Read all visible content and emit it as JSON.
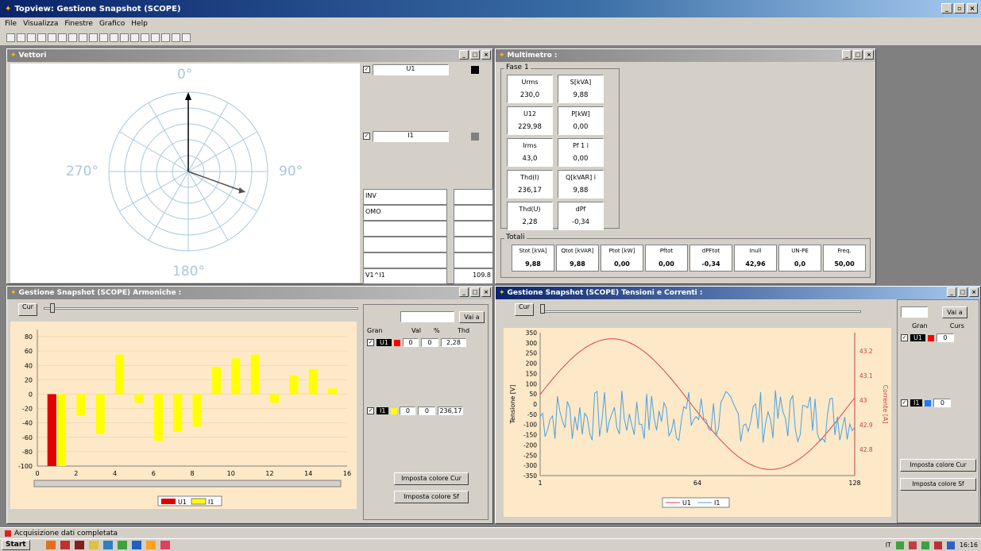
{
  "app": {
    "title": "Topview: Gestione Snapshot (SCOPE)",
    "menu": [
      "File",
      "Visualizza",
      "Finestre",
      "Grafico",
      "Help"
    ]
  },
  "vettori": {
    "title": "Vettori",
    "deg_top": "0°",
    "deg_right": "90°",
    "deg_bottom": "180°",
    "deg_left": "270°",
    "u1_label": "U1",
    "i1_label": "I1",
    "u1_color": "#000000",
    "i1_color": "#808080",
    "table": [
      [
        "INV",
        ""
      ],
      [
        "OMO",
        ""
      ],
      [
        "",
        ""
      ],
      [
        "",
        ""
      ],
      [
        "",
        ""
      ],
      [
        "V1^I1",
        "109.8"
      ]
    ]
  },
  "multimetro": {
    "title": "Multimetro :",
    "fase_label": "Fase 1",
    "cells": [
      {
        "l": "Urms",
        "v": "230,0"
      },
      {
        "l": "S[kVA]",
        "v": "9,88"
      },
      {
        "l": "U12",
        "v": "229,98"
      },
      {
        "l": "P[kW]",
        "v": "0,00"
      },
      {
        "l": "Irms",
        "v": "43,0"
      },
      {
        "l": "Pf 1 i",
        "v": "0,00"
      },
      {
        "l": "Thd(I)",
        "v": "236,17"
      },
      {
        "l": "Q[kVAR] i",
        "v": "9,88"
      },
      {
        "l": "Thd(U)",
        "v": "2,28"
      },
      {
        "l": "dPf",
        "v": "-0,34"
      }
    ],
    "totali_label": "Totali",
    "totali": [
      {
        "l": "Stot [kVA]",
        "v": "9,88"
      },
      {
        "l": "Qtot [kVAR]",
        "v": "9,88"
      },
      {
        "l": "Ptot [kW]",
        "v": "0,00"
      },
      {
        "l": "Pftot",
        "v": "0,00"
      },
      {
        "l": "dPFtot",
        "v": "-0,34"
      },
      {
        "l": "Inull",
        "v": "42,96"
      },
      {
        "l": "UN-PE",
        "v": "0,0"
      },
      {
        "l": "Freq.",
        "v": "50,00"
      }
    ]
  },
  "armoniche": {
    "title": "Gestione Snapshot (SCOPE) Armoniche :",
    "cur_label": "Cur",
    "vai_label": "Vai a",
    "hdr": [
      "Gran",
      "Val",
      "%",
      "Thd"
    ],
    "u1": {
      "name": "U1",
      "val": "0",
      "pct": "0",
      "thd": "2,28",
      "color": "#ff0000"
    },
    "i1": {
      "name": "I1",
      "val": "0",
      "pct": "0",
      "thd": "236,17",
      "color": "#ffff00"
    },
    "btn_cur": "Imposta colore Cur",
    "btn_sf": "Imposta colore Sf"
  },
  "tensioni": {
    "title": "Gestione Snapshot (SCOPE) Tensioni e Correnti :",
    "cur_label": "Cur",
    "vai_label": "Vai a",
    "hdr": [
      "Gran",
      "Curs"
    ],
    "u1": {
      "name": "U1",
      "val": "0",
      "color": "#ff0000"
    },
    "i1": {
      "name": "I1",
      "val": "0",
      "color": "#1e78ff"
    },
    "btn_cur": "Imposta colore Cur",
    "btn_sf": "Imposta colore Sf"
  },
  "chart_data": [
    {
      "type": "bar",
      "categories": [
        1,
        2,
        3,
        4,
        5,
        6,
        7,
        8,
        9,
        10,
        11,
        12,
        13,
        14,
        15
      ],
      "series": [
        {
          "name": "U1",
          "values": [
            -100,
            0,
            0,
            0,
            0,
            0,
            0,
            0,
            0,
            0,
            0,
            0,
            0,
            0,
            0
          ]
        },
        {
          "name": "I1",
          "values": [
            -100,
            -30,
            -55,
            55,
            -12,
            -65,
            -52,
            -45,
            38,
            50,
            55,
            -12,
            26,
            35,
            8
          ]
        }
      ],
      "xticks": [
        0,
        2,
        4,
        6,
        8,
        10,
        12,
        14,
        16
      ],
      "yticks": [
        80,
        60,
        40,
        20,
        0,
        -20,
        -40,
        -60,
        -80,
        -100
      ],
      "ylim": [
        -100,
        90
      ],
      "xlim": [
        0,
        16
      ],
      "legend": "bottom-center"
    },
    {
      "type": "line",
      "ylabel": "Tensione [V]",
      "y2label": "Corrente [A]",
      "yticks": [
        350,
        300,
        250,
        200,
        150,
        100,
        50,
        0,
        -50,
        -100,
        -150,
        -200,
        -250,
        -300,
        -350
      ],
      "y2ticks": [
        "43.2",
        "43.1",
        "43",
        "42.9",
        "42.8"
      ],
      "xticks": [
        "1",
        "64",
        "128"
      ],
      "series": [
        {
          "name": "U1",
          "color": "#e04040",
          "shape": "sine",
          "amplitude": 320,
          "phase_peak_x": 30
        },
        {
          "name": "I1",
          "color": "#4aa0e0",
          "shape": "noise",
          "mean": -60
        }
      ],
      "legend": "bottom-center"
    }
  ],
  "status": {
    "text": "Acquisizione dati completata",
    "start": "Start",
    "lang": "IT",
    "clock": "16:16"
  }
}
